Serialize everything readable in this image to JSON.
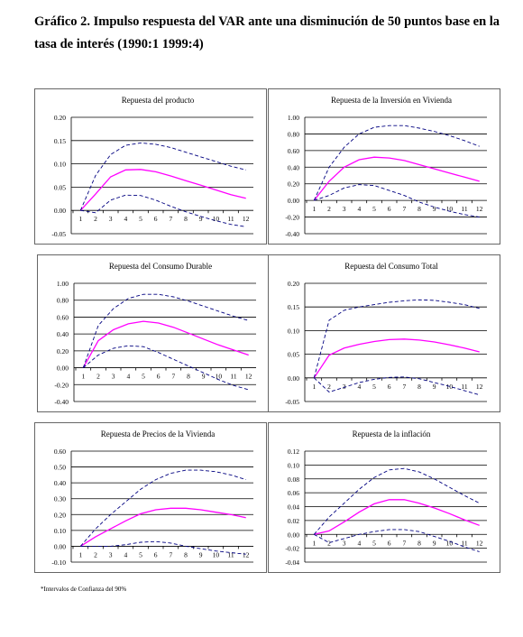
{
  "page": {
    "title": "Gráfico 2. Impulso respuesta del  VAR ante una disminución de 50 puntos base en la tasa de interés (1990:1 1999:4)",
    "footnote": "*Intervalos de Confianza del 90%"
  },
  "style": {
    "series_color": "#FF00FF",
    "band_color": "#000080",
    "grid_color": "#000000"
  },
  "chart_data": [
    {
      "type": "line",
      "title": "Repuesta del producto",
      "x": [
        1,
        2,
        3,
        4,
        5,
        6,
        7,
        8,
        9,
        10,
        11,
        12
      ],
      "ylim": [
        -0.05,
        0.2
      ],
      "yticks": [
        "0.20",
        "0.15",
        "0.10",
        "0.05",
        "0.00",
        "-0.05"
      ],
      "ytick_values": [
        0.2,
        0.15,
        0.1,
        0.05,
        0,
        -0.05
      ],
      "series": [
        {
          "role": "response",
          "values": [
            0.0,
            0.035,
            0.072,
            0.087,
            0.088,
            0.083,
            0.074,
            0.064,
            0.054,
            0.044,
            0.034,
            0.026
          ]
        },
        {
          "role": "upper",
          "values": [
            0.0,
            0.075,
            0.12,
            0.14,
            0.145,
            0.142,
            0.135,
            0.125,
            0.115,
            0.105,
            0.095,
            0.087
          ]
        },
        {
          "role": "lower",
          "values": [
            0.0,
            -0.005,
            0.022,
            0.033,
            0.032,
            0.022,
            0.009,
            -0.003,
            -0.013,
            -0.022,
            -0.03,
            -0.035
          ]
        }
      ]
    },
    {
      "type": "line",
      "title": "Repuesta de la Inversión en Vivienda",
      "x": [
        1,
        2,
        3,
        4,
        5,
        6,
        7,
        8,
        9,
        10,
        11,
        12
      ],
      "ylim": [
        -0.4,
        1.0
      ],
      "yticks": [
        "1.00",
        "0.80",
        "0.60",
        "0.40",
        "0.20",
        "0.00",
        "-0.20",
        "-0.40"
      ],
      "ytick_values": [
        1.0,
        0.8,
        0.6,
        0.4,
        0.2,
        0,
        -0.2,
        -0.4
      ],
      "series": [
        {
          "role": "response",
          "values": [
            0.0,
            0.23,
            0.4,
            0.49,
            0.52,
            0.51,
            0.48,
            0.43,
            0.38,
            0.33,
            0.28,
            0.23
          ]
        },
        {
          "role": "upper",
          "values": [
            0.0,
            0.4,
            0.64,
            0.8,
            0.88,
            0.9,
            0.9,
            0.87,
            0.83,
            0.78,
            0.72,
            0.65
          ]
        },
        {
          "role": "lower",
          "values": [
            0.0,
            0.06,
            0.15,
            0.19,
            0.18,
            0.12,
            0.06,
            -0.02,
            -0.08,
            -0.13,
            -0.17,
            -0.2
          ]
        }
      ]
    },
    {
      "type": "line",
      "title": "Repuesta del Consumo Durable",
      "x": [
        1,
        2,
        3,
        4,
        5,
        6,
        7,
        8,
        9,
        10,
        11,
        12
      ],
      "ylim": [
        -0.4,
        1.0
      ],
      "yticks": [
        "1.00",
        "0.80",
        "0.60",
        "0.40",
        "0.20",
        "0.00",
        "-0.20",
        "-0.40"
      ],
      "ytick_values": [
        1.0,
        0.8,
        0.6,
        0.4,
        0.2,
        0,
        -0.2,
        -0.4
      ],
      "series": [
        {
          "role": "response",
          "values": [
            0.0,
            0.32,
            0.45,
            0.52,
            0.55,
            0.53,
            0.48,
            0.41,
            0.34,
            0.27,
            0.21,
            0.15
          ]
        },
        {
          "role": "upper",
          "values": [
            0.0,
            0.5,
            0.7,
            0.82,
            0.87,
            0.87,
            0.84,
            0.79,
            0.73,
            0.67,
            0.61,
            0.56
          ]
        },
        {
          "role": "lower",
          "values": [
            0.0,
            0.15,
            0.23,
            0.26,
            0.25,
            0.18,
            0.1,
            0.02,
            -0.06,
            -0.14,
            -0.21,
            -0.26
          ]
        }
      ]
    },
    {
      "type": "line",
      "title": "Repuesta del Consumo Total",
      "x": [
        1,
        2,
        3,
        4,
        5,
        6,
        7,
        8,
        9,
        10,
        11,
        12
      ],
      "ylim": [
        -0.05,
        0.2
      ],
      "yticks": [
        "0.20",
        "0.15",
        "0.10",
        "0.05",
        "0.00",
        "-0.05"
      ],
      "ytick_values": [
        0.2,
        0.15,
        0.1,
        0.05,
        0,
        -0.05
      ],
      "series": [
        {
          "role": "response",
          "values": [
            0.0,
            0.048,
            0.063,
            0.071,
            0.077,
            0.081,
            0.082,
            0.08,
            0.076,
            0.07,
            0.063,
            0.055
          ]
        },
        {
          "role": "upper",
          "values": [
            0.0,
            0.122,
            0.143,
            0.15,
            0.155,
            0.16,
            0.163,
            0.165,
            0.164,
            0.16,
            0.155,
            0.147
          ]
        },
        {
          "role": "lower",
          "values": [
            0.0,
            -0.03,
            -0.02,
            -0.01,
            -0.003,
            0.001,
            0.002,
            -0.002,
            -0.01,
            -0.018,
            -0.027,
            -0.036
          ]
        }
      ]
    },
    {
      "type": "line",
      "title": "Repuesta de Precios de la  Vivienda",
      "x": [
        1,
        2,
        3,
        4,
        5,
        6,
        7,
        8,
        9,
        10,
        11,
        12
      ],
      "ylim": [
        -0.1,
        0.6
      ],
      "yticks": [
        "0.60",
        "0.50",
        "0.40",
        "0.30",
        "0.20",
        "0.10",
        "0.00",
        "-0.10"
      ],
      "ytick_values": [
        0.6,
        0.5,
        0.4,
        0.3,
        0.2,
        0.1,
        0,
        -0.1
      ],
      "series": [
        {
          "role": "response",
          "values": [
            0.0,
            0.06,
            0.11,
            0.16,
            0.205,
            0.23,
            0.24,
            0.24,
            0.23,
            0.215,
            0.2,
            0.18
          ]
        },
        {
          "role": "upper",
          "values": [
            0.0,
            0.11,
            0.2,
            0.28,
            0.36,
            0.42,
            0.46,
            0.48,
            0.48,
            0.47,
            0.45,
            0.42
          ]
        },
        {
          "role": "lower",
          "values": [
            0.0,
            0.0,
            0.0,
            0.01,
            0.025,
            0.03,
            0.02,
            0.0,
            -0.015,
            -0.03,
            -0.04,
            -0.05
          ]
        }
      ]
    },
    {
      "type": "line",
      "title": "Repuesta de la inflación",
      "x": [
        1,
        2,
        3,
        4,
        5,
        6,
        7,
        8,
        9,
        10,
        11,
        12
      ],
      "ylim": [
        -0.04,
        0.12
      ],
      "yticks": [
        "0.12",
        "0.10",
        "0.08",
        "0.06",
        "0.04",
        "0.02",
        "0.00",
        "-0.02",
        "-0.04"
      ],
      "ytick_values": [
        0.12,
        0.1,
        0.08,
        0.06,
        0.04,
        0.02,
        0,
        -0.02,
        -0.04
      ],
      "series": [
        {
          "role": "response",
          "values": [
            0.0,
            0.005,
            0.018,
            0.032,
            0.044,
            0.05,
            0.05,
            0.045,
            0.038,
            0.03,
            0.021,
            0.013
          ]
        },
        {
          "role": "upper",
          "values": [
            0.0,
            0.025,
            0.045,
            0.065,
            0.082,
            0.093,
            0.095,
            0.09,
            0.08,
            0.068,
            0.056,
            0.045
          ]
        },
        {
          "role": "lower",
          "values": [
            0.0,
            -0.012,
            -0.006,
            0.0,
            0.004,
            0.007,
            0.007,
            0.004,
            -0.003,
            -0.01,
            -0.018,
            -0.025
          ]
        }
      ]
    }
  ]
}
